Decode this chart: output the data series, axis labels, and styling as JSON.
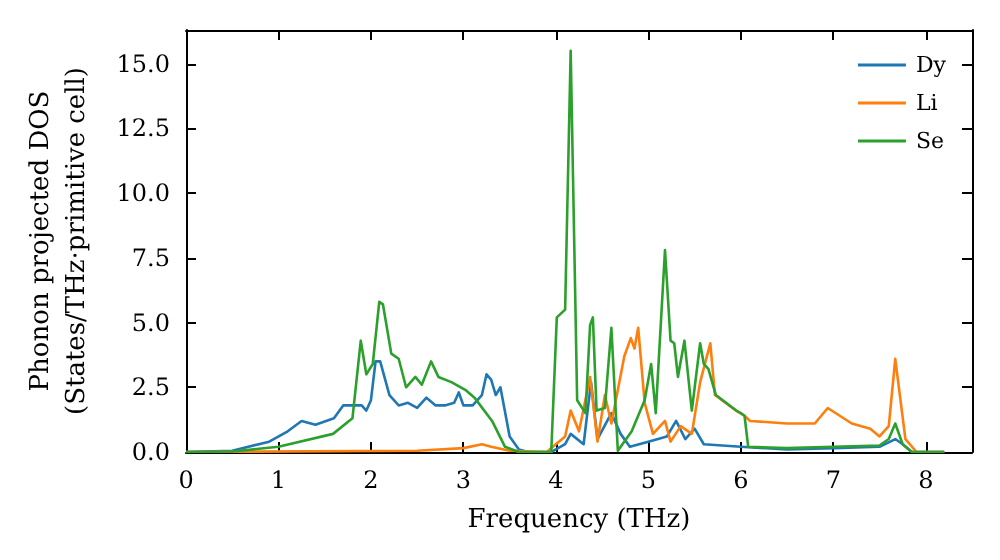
{
  "chart_data": {
    "type": "line",
    "xlabel": "Frequency (THz)",
    "ylabel": "Phonon projected DOS\n(States/THz·primitive cell)",
    "xlim": [
      0,
      8.5
    ],
    "ylim": [
      0,
      16.3
    ],
    "xticks": [
      0,
      1,
      2,
      3,
      4,
      5,
      6,
      7,
      8
    ],
    "yticks": [
      {
        "value": 0,
        "label": "0.0"
      },
      {
        "value": 2.5,
        "label": "2.5"
      },
      {
        "value": 5,
        "label": "5.0"
      },
      {
        "value": 7.5,
        "label": "7.5"
      },
      {
        "value": 10,
        "label": "10.0"
      },
      {
        "value": 12.5,
        "label": "12.5"
      },
      {
        "value": 15,
        "label": "15.0"
      }
    ],
    "grid": false,
    "legend": "top right",
    "marker": "none",
    "line_style": "solid",
    "series": [
      {
        "name": "Dy",
        "color": "#1f77b4",
        "x": [
          0,
          0.5,
          0.9,
          1.1,
          1.25,
          1.4,
          1.6,
          1.7,
          1.9,
          1.95,
          2.0,
          2.05,
          2.1,
          2.2,
          2.3,
          2.4,
          2.5,
          2.6,
          2.7,
          2.8,
          2.9,
          2.95,
          3.0,
          3.1,
          3.2,
          3.25,
          3.3,
          3.35,
          3.4,
          3.5,
          3.6,
          3.7,
          3.95,
          4.0,
          4.1,
          4.16,
          4.3,
          4.38,
          4.45,
          4.6,
          4.7,
          4.8,
          5.0,
          5.2,
          5.3,
          5.4,
          5.5,
          5.6,
          6.0,
          6.5,
          7.0,
          7.5,
          7.67,
          7.75,
          7.85,
          8.2
        ],
        "values": [
          0,
          0.05,
          0.4,
          0.8,
          1.2,
          1.05,
          1.3,
          1.8,
          1.8,
          1.6,
          2.0,
          3.5,
          3.5,
          2.2,
          1.8,
          1.9,
          1.7,
          2.1,
          1.8,
          1.8,
          1.9,
          2.3,
          1.8,
          1.8,
          2.2,
          3.0,
          2.8,
          2.2,
          2.5,
          0.6,
          0.1,
          0,
          0,
          0.1,
          0.3,
          0.7,
          0.3,
          2.7,
          0.5,
          1.5,
          0.7,
          0.2,
          0.4,
          0.6,
          1.2,
          0.5,
          0.9,
          0.3,
          0.2,
          0.1,
          0.15,
          0.2,
          0.5,
          0.3,
          0,
          0
        ]
      },
      {
        "name": "Li",
        "color": "#ff7f0e",
        "x": [
          0,
          2.5,
          3.0,
          3.2,
          3.3,
          3.5,
          3.9,
          4.0,
          4.1,
          4.16,
          4.25,
          4.37,
          4.45,
          4.53,
          4.6,
          4.74,
          4.81,
          4.85,
          4.89,
          4.96,
          5.05,
          5.18,
          5.24,
          5.35,
          5.47,
          5.56,
          5.67,
          5.72,
          5.95,
          6.04,
          6.1,
          6.5,
          6.8,
          6.94,
          7.2,
          7.4,
          7.5,
          7.6,
          7.67,
          7.78,
          7.9,
          8.2
        ],
        "values": [
          0,
          0.05,
          0.15,
          0.3,
          0.2,
          0.05,
          0,
          0.3,
          0.6,
          1.6,
          0.8,
          2.9,
          0.4,
          2.2,
          1.1,
          3.7,
          4.4,
          4.0,
          4.8,
          1.9,
          0.7,
          1.2,
          0.4,
          1.0,
          0.7,
          2.7,
          4.2,
          2.2,
          1.6,
          1.4,
          1.2,
          1.1,
          1.1,
          1.7,
          1.1,
          0.9,
          0.6,
          1.0,
          3.6,
          0.5,
          0,
          0
        ]
      },
      {
        "name": "Se",
        "color": "#2ca02c",
        "x": [
          0,
          0.5,
          1.0,
          1.59,
          1.8,
          1.89,
          1.95,
          2.02,
          2.09,
          2.13,
          2.22,
          2.3,
          2.38,
          2.48,
          2.55,
          2.65,
          2.73,
          2.87,
          3.02,
          3.12,
          3.31,
          3.45,
          3.6,
          3.95,
          4.01,
          4.1,
          4.16,
          4.23,
          4.32,
          4.37,
          4.4,
          4.44,
          4.53,
          4.6,
          4.67,
          4.82,
          4.96,
          5.03,
          5.08,
          5.18,
          5.24,
          5.28,
          5.32,
          5.39,
          5.47,
          5.56,
          5.6,
          5.65,
          5.73,
          5.95,
          6.0,
          6.04,
          6.08,
          6.5,
          7.0,
          7.5,
          7.6,
          7.67,
          7.75,
          7.85,
          8.2
        ],
        "values": [
          0,
          0.02,
          0.2,
          0.7,
          1.3,
          4.3,
          3.0,
          3.4,
          5.8,
          5.7,
          3.8,
          3.6,
          2.5,
          2.9,
          2.6,
          3.5,
          2.9,
          2.7,
          2.4,
          2.1,
          1.2,
          0.2,
          0,
          0,
          5.2,
          5.5,
          15.5,
          2.0,
          1.5,
          4.9,
          5.2,
          1.6,
          1.7,
          4.8,
          0.05,
          0.8,
          2.0,
          3.4,
          1.5,
          7.8,
          4.3,
          4.2,
          2.9,
          4.3,
          1.6,
          4.2,
          3.4,
          3.2,
          2.2,
          1.6,
          1.5,
          1.4,
          0.2,
          0.15,
          0.2,
          0.25,
          0.5,
          1.1,
          0.3,
          0,
          0
        ]
      }
    ]
  }
}
